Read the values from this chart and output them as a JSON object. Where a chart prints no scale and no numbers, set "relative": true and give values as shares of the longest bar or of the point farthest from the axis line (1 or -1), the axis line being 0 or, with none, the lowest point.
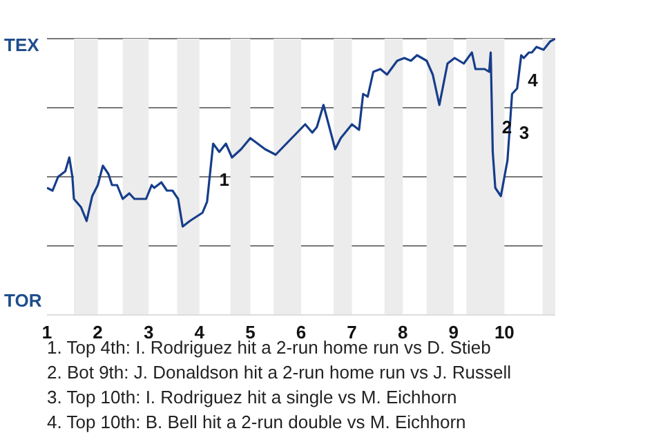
{
  "chart_data": {
    "type": "line",
    "relative": true,
    "xlim": [
      1,
      11
    ],
    "xticks": [
      1,
      2,
      3,
      4,
      5,
      6,
      7,
      8,
      9,
      10
    ],
    "grid": "y",
    "marker": "none",
    "line_style": "solid",
    "legend": false,
    "bands": [
      {
        "axis": "x",
        "from": 1.53,
        "to": 2,
        "color": "#ececec"
      },
      {
        "axis": "x",
        "from": 2.49,
        "to": 3,
        "color": "#ececec"
      },
      {
        "axis": "x",
        "from": 3.56,
        "to": 4,
        "color": "#ececec"
      },
      {
        "axis": "x",
        "from": 4.61,
        "to": 5,
        "color": "#ececec"
      },
      {
        "axis": "x",
        "from": 5.46,
        "to": 6,
        "color": "#ececec"
      },
      {
        "axis": "x",
        "from": 6.64,
        "to": 7,
        "color": "#ececec"
      },
      {
        "axis": "x",
        "from": 7.64,
        "to": 8,
        "color": "#ececec"
      },
      {
        "axis": "x",
        "from": 8.47,
        "to": 9,
        "color": "#ececec"
      },
      {
        "axis": "x",
        "from": 9.25,
        "to": 10,
        "color": "#ececec"
      },
      {
        "axis": "x",
        "from": 10.75,
        "to": 11,
        "color": "#ececec"
      }
    ],
    "series": [
      {
        "color": "#163d8a",
        "x": [
          1,
          1.11,
          1.22,
          1.36,
          1.44,
          1.5,
          1.53,
          1.67,
          1.78,
          1.89,
          2,
          2.1,
          2.21,
          2.28,
          2.38,
          2.49,
          2.62,
          2.72,
          2.95,
          3.06,
          3.11,
          3.25,
          3.36,
          3.47,
          3.58,
          3.67,
          3.81,
          4.06,
          4.15,
          4.27,
          4.39,
          4.52,
          4.64,
          4.82,
          5,
          5.29,
          5.5,
          5.71,
          6.08,
          6.22,
          6.31,
          6.44,
          6.67,
          6.78,
          7,
          7.14,
          7.22,
          7.31,
          7.42,
          7.56,
          7.69,
          7.89,
          8.03,
          8.16,
          8.28,
          8.47,
          8.59,
          8.72,
          8.88,
          9.02,
          9.2,
          9.36,
          9.43,
          9.61,
          9.7,
          9.73,
          9.77,
          9.82,
          9.93,
          10.06,
          10.15,
          10.25,
          10.33,
          10.38,
          10.48,
          10.54,
          10.63,
          10.77,
          10.9,
          11
        ],
        "values": [
          0.46,
          0.45,
          0.5,
          0.52,
          0.57,
          0.5,
          0.42,
          0.39,
          0.34,
          0.43,
          0.47,
          0.54,
          0.51,
          0.47,
          0.47,
          0.42,
          0.44,
          0.42,
          0.42,
          0.47,
          0.46,
          0.48,
          0.45,
          0.45,
          0.42,
          0.32,
          0.34,
          0.37,
          0.41,
          0.62,
          0.59,
          0.62,
          0.57,
          0.6,
          0.64,
          0.6,
          0.58,
          0.62,
          0.69,
          0.66,
          0.68,
          0.76,
          0.6,
          0.64,
          0.69,
          0.67,
          0.8,
          0.79,
          0.88,
          0.89,
          0.87,
          0.92,
          0.93,
          0.92,
          0.94,
          0.92,
          0.87,
          0.76,
          0.91,
          0.93,
          0.91,
          0.95,
          0.89,
          0.89,
          0.88,
          0.95,
          0.59,
          0.46,
          0.43,
          0.56,
          0.8,
          0.82,
          0.94,
          0.93,
          0.95,
          0.95,
          0.97,
          0.96,
          0.99,
          1.0
        ]
      }
    ],
    "annotations": [
      "TEX",
      "TOR",
      {
        "text": "1",
        "x": 4.2,
        "y": 0.49
      },
      {
        "text": "2",
        "x": 9.76,
        "y": 0.68
      },
      {
        "text": "3",
        "x": 10.1,
        "y": 0.66
      },
      {
        "text": "4",
        "x": 10.27,
        "y": 0.85
      },
      "1. Top 4th: I. Rodriguez hit a 2-run home run vs D. Stieb",
      "2. Bot 9th: J. Donaldson hit a 2-run home run vs J. Russell",
      "3. Top 10th: I. Rodriguez hit a single vs M. Eichhorn",
      "4. Top 10th: B. Bell hit a 2-run double vs M. Eichhorn"
    ]
  }
}
